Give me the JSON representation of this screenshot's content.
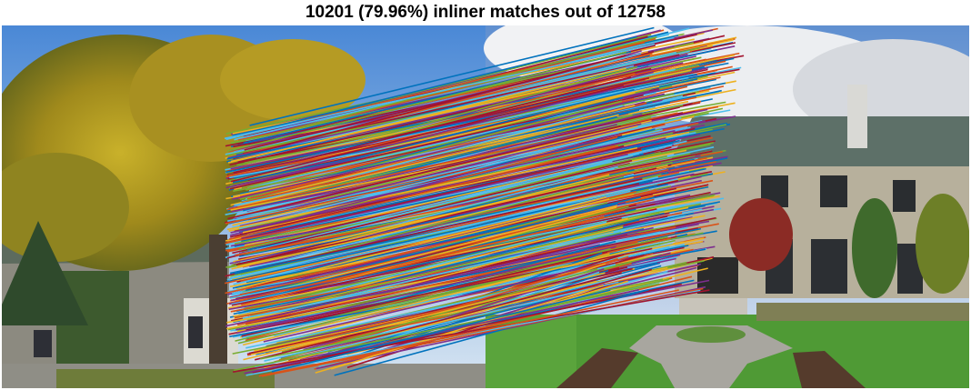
{
  "figure": {
    "title": "10201 (79.96%) inliner matches out of 12758"
  },
  "scene": {
    "left_image": "photo-left-garden-building-yellow-tree",
    "right_image": "photo-right-stone-manor-lawn"
  },
  "match_palette": [
    "#0072BD",
    "#D95319",
    "#EDB120",
    "#7E2F8E",
    "#77AC30",
    "#4DBEEE",
    "#A2142F"
  ]
}
